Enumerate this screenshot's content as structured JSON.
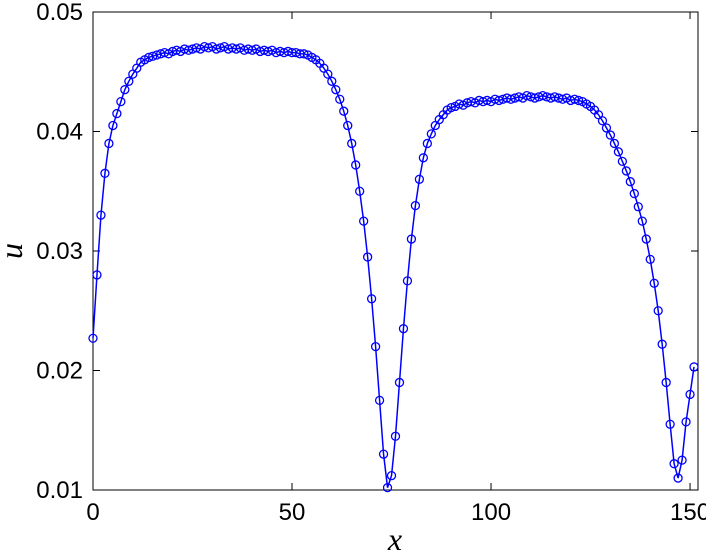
{
  "chart_data": {
    "type": "line",
    "xlabel": "x",
    "ylabel": "u",
    "color": "#0000ff",
    "marker": "circle",
    "xlim": [
      0,
      152
    ],
    "ylim": [
      0.01,
      0.05
    ],
    "xticks": [
      0,
      50,
      100,
      150
    ],
    "yticks": [
      0.01,
      0.02,
      0.03,
      0.04,
      0.05
    ],
    "x": [
      0,
      1,
      2,
      3,
      4,
      5,
      6,
      7,
      8,
      9,
      10,
      11,
      12,
      13,
      14,
      15,
      16,
      17,
      18,
      19,
      20,
      21,
      22,
      23,
      24,
      25,
      26,
      27,
      28,
      29,
      30,
      31,
      32,
      33,
      34,
      35,
      36,
      37,
      38,
      39,
      40,
      41,
      42,
      43,
      44,
      45,
      46,
      47,
      48,
      49,
      50,
      51,
      52,
      53,
      54,
      55,
      56,
      57,
      58,
      59,
      60,
      61,
      62,
      63,
      64,
      65,
      66,
      67,
      68,
      69,
      70,
      71,
      72,
      73,
      74,
      75,
      76,
      77,
      78,
      79,
      80,
      81,
      82,
      83,
      84,
      85,
      86,
      87,
      88,
      89,
      90,
      91,
      92,
      93,
      94,
      95,
      96,
      97,
      98,
      99,
      100,
      101,
      102,
      103,
      104,
      105,
      106,
      107,
      108,
      109,
      110,
      111,
      112,
      113,
      114,
      115,
      116,
      117,
      118,
      119,
      120,
      121,
      122,
      123,
      124,
      125,
      126,
      127,
      128,
      129,
      130,
      131,
      132,
      133,
      134,
      135,
      136,
      137,
      138,
      139,
      140,
      141,
      142,
      143,
      144,
      145,
      146,
      147,
      148,
      149,
      150,
      151
    ],
    "values": [
      0.0227,
      0.028,
      0.033,
      0.0365,
      0.039,
      0.0405,
      0.0415,
      0.0425,
      0.0435,
      0.0442,
      0.0448,
      0.0453,
      0.0458,
      0.046,
      0.0462,
      0.0463,
      0.0464,
      0.0465,
      0.0466,
      0.0465,
      0.0467,
      0.0468,
      0.0467,
      0.0469,
      0.0468,
      0.0469,
      0.047,
      0.0469,
      0.0471,
      0.047,
      0.0471,
      0.0469,
      0.047,
      0.0471,
      0.0469,
      0.047,
      0.0469,
      0.047,
      0.0468,
      0.0469,
      0.0468,
      0.0469,
      0.0467,
      0.0468,
      0.0467,
      0.0468,
      0.0466,
      0.0467,
      0.0466,
      0.0467,
      0.0466,
      0.0466,
      0.0465,
      0.0465,
      0.0464,
      0.0462,
      0.046,
      0.0457,
      0.0453,
      0.0448,
      0.0442,
      0.0435,
      0.0427,
      0.0417,
      0.0405,
      0.039,
      0.0372,
      0.035,
      0.0325,
      0.0295,
      0.026,
      0.022,
      0.0175,
      0.013,
      0.0102,
      0.0112,
      0.0145,
      0.019,
      0.0235,
      0.0275,
      0.031,
      0.0338,
      0.036,
      0.0378,
      0.039,
      0.0398,
      0.0405,
      0.041,
      0.0414,
      0.0418,
      0.042,
      0.0421,
      0.0423,
      0.0422,
      0.0424,
      0.0425,
      0.0424,
      0.0426,
      0.0425,
      0.0426,
      0.0425,
      0.0427,
      0.0426,
      0.0427,
      0.0428,
      0.0427,
      0.0428,
      0.0429,
      0.0428,
      0.043,
      0.0429,
      0.0428,
      0.0429,
      0.043,
      0.0429,
      0.0428,
      0.0429,
      0.0428,
      0.0427,
      0.0428,
      0.0426,
      0.0427,
      0.0426,
      0.0425,
      0.0423,
      0.0421,
      0.0418,
      0.0414,
      0.0409,
      0.0403,
      0.0397,
      0.039,
      0.0383,
      0.0375,
      0.0367,
      0.0358,
      0.0348,
      0.0337,
      0.0325,
      0.031,
      0.0293,
      0.0273,
      0.025,
      0.0222,
      0.019,
      0.0155,
      0.0122,
      0.011,
      0.0125,
      0.0157,
      0.018,
      0.0203
    ]
  }
}
